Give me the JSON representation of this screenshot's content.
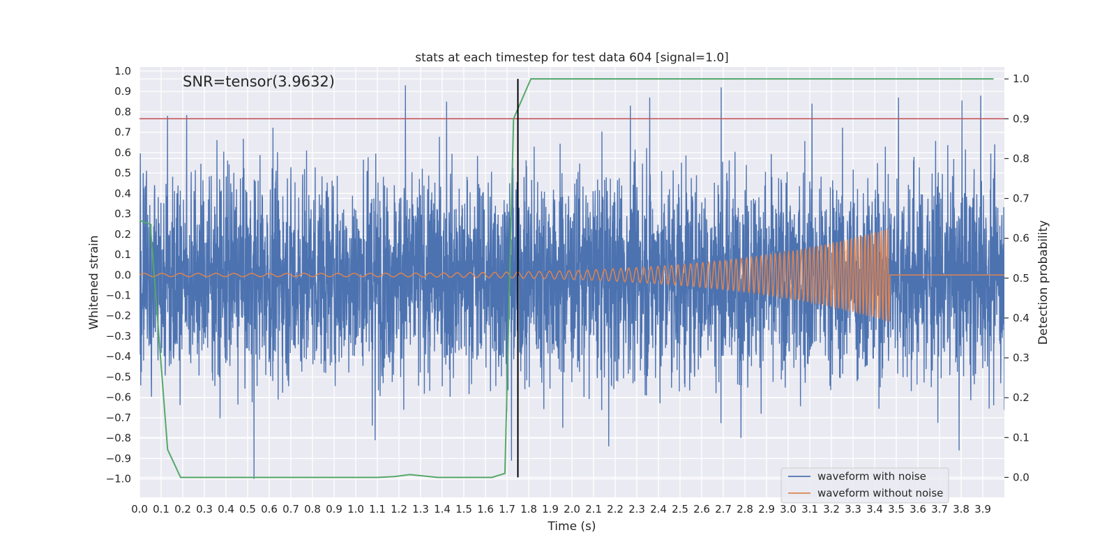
{
  "chart_data": {
    "type": "line",
    "title": "stats at each timestep for test data 604 [signal=1.0]",
    "annotation": "SNR=tensor(3.9632)",
    "xlabel": "Time (s)",
    "ylabel": "Whitened strain",
    "ylabel_right": "Detection probability",
    "xlim": [
      0.0,
      4.0
    ],
    "ylim": [
      -1.09,
      1.02
    ],
    "ylim_right": [
      -0.05,
      1.03
    ],
    "x_ticks": [
      "0.0",
      "0.1",
      "0.2",
      "0.3",
      "0.4",
      "0.5",
      "0.6",
      "0.7",
      "0.8",
      "0.9",
      "1.0",
      "1.1",
      "1.2",
      "1.3",
      "1.4",
      "1.5",
      "1.6",
      "1.7",
      "1.8",
      "1.9",
      "2.0",
      "2.1",
      "2.2",
      "2.3",
      "2.4",
      "2.5",
      "2.6",
      "2.7",
      "2.8",
      "2.9",
      "3.0",
      "3.1",
      "3.2",
      "3.3",
      "3.4",
      "3.5",
      "3.6",
      "3.7",
      "3.8",
      "3.9"
    ],
    "y_ticks": [
      "1.0",
      "0.9",
      "0.8",
      "0.7",
      "0.6",
      "0.5",
      "0.4",
      "0.3",
      "0.2",
      "0.1",
      "0.0",
      "−0.1",
      "−0.2",
      "−0.3",
      "−0.4",
      "−0.5",
      "−0.6",
      "−0.7",
      "−0.8",
      "−0.9",
      "−1.0"
    ],
    "y_ticks_right": [
      "1.0",
      "0.9",
      "0.8",
      "0.7",
      "0.6",
      "0.5",
      "0.4",
      "0.3",
      "0.2",
      "0.1",
      "0.0"
    ],
    "grid": true,
    "legend_position": "lower-right",
    "background": "#eaeaf2",
    "series": [
      {
        "name": "waveform with noise",
        "color": "#4c72b0",
        "axis": "left",
        "description_stats": {
          "t_start": 0.0,
          "t_end": 4.0,
          "typical_amplitude": 0.25,
          "max": 0.93,
          "min": -1.0
        },
        "spikes": [
          [
            0.13,
            0.78
          ],
          [
            0.53,
            -1.0
          ],
          [
            1.23,
            0.93
          ],
          [
            1.42,
            0.85
          ],
          [
            1.72,
            -0.91
          ],
          [
            2.27,
            0.83
          ],
          [
            2.36,
            0.87
          ],
          [
            2.69,
            0.92
          ],
          [
            3.11,
            0.84
          ],
          [
            3.51,
            0.87
          ],
          [
            3.89,
            0.88
          ],
          [
            3.79,
            -0.86
          ],
          [
            2.17,
            -0.84
          ],
          [
            1.09,
            -0.81
          ]
        ]
      },
      {
        "name": "waveform without noise",
        "color": "#dd8452",
        "axis": "left",
        "chirp": {
          "t_start": 0.0,
          "t_merge": 3.47,
          "f_start": 12,
          "f_merge": 70,
          "amp_start": 0.008,
          "amp_peak": 0.23
        }
      },
      {
        "color": "#55a868",
        "axis": "right",
        "x": [
          0.0,
          0.05,
          0.13,
          0.19,
          0.4,
          0.7,
          1.0,
          1.1,
          1.18,
          1.25,
          1.38,
          1.55,
          1.63,
          1.69,
          1.73,
          1.81,
          2.5,
          3.3,
          3.95
        ],
        "y": [
          0.645,
          0.635,
          0.07,
          0.0,
          0.0,
          0.0,
          0.0,
          0.0,
          0.002,
          0.007,
          0.0,
          0.0,
          0.0,
          0.01,
          0.9,
          1.0,
          1.0,
          1.0,
          1.0
        ]
      }
    ],
    "threshold_line": {
      "axis": "right",
      "y": 0.9,
      "color": "#c44e52"
    },
    "marker_line": {
      "x": 1.75,
      "color": "#000000"
    }
  }
}
